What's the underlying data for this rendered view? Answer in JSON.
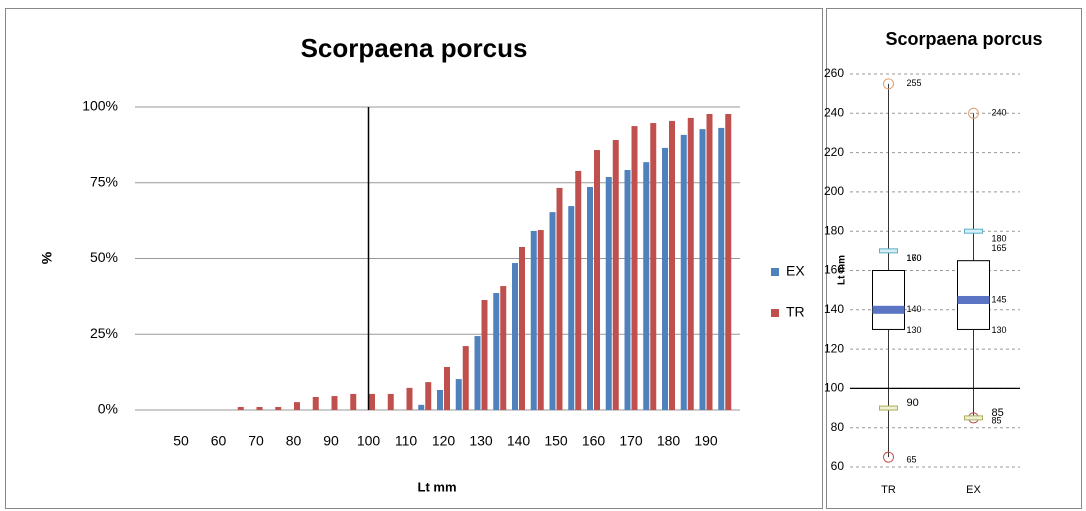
{
  "chart_data": [
    {
      "type": "bar",
      "title": "Scorpaena porcus",
      "x_label": "Lt mm",
      "y_label": "%",
      "categories": [
        50,
        null,
        60,
        null,
        70,
        null,
        80,
        null,
        90,
        null,
        100,
        null,
        110,
        null,
        120,
        null,
        130,
        null,
        140,
        null,
        150,
        null,
        160,
        null,
        170,
        null,
        180,
        null,
        190,
        null
      ],
      "series": [
        {
          "name": "EX",
          "color": "#4f81bd",
          "values": [
            0,
            0,
            0,
            0,
            0,
            0,
            0,
            0,
            0,
            0,
            0,
            0,
            0,
            1.7,
            6.6,
            10.2,
            24.4,
            38.6,
            48.5,
            59.1,
            65.3,
            67.3,
            73.6,
            76.9,
            79.2,
            81.8,
            86.5,
            90.8,
            92.7,
            93.1
          ]
        },
        {
          "name": "TR",
          "color": "#c0504d",
          "values": [
            0,
            0,
            0,
            1,
            1,
            1,
            2.6,
            4.3,
            4.6,
            5.3,
            5.3,
            5.3,
            7.3,
            9.2,
            14.2,
            21.1,
            36.3,
            40.9,
            53.8,
            59.4,
            73.3,
            78.9,
            85.8,
            89.1,
            93.7,
            94.7,
            95.4,
            96.4,
            97.7,
            97.7
          ]
        }
      ],
      "ylim": [
        0,
        100
      ],
      "yticks": [
        {
          "value": 0,
          "label": "0%"
        },
        {
          "value": 25,
          "label": "25%"
        },
        {
          "value": 50,
          "label": "50%"
        },
        {
          "value": 75,
          "label": "75%"
        },
        {
          "value": 100,
          "label": "100%"
        }
      ],
      "grid": true,
      "legend": "right",
      "vline": 100
    },
    {
      "type": "box",
      "title": "Scorpaena porcus",
      "y_label": "Lt mm",
      "categories": [
        "TR",
        "EX"
      ],
      "boxes": [
        {
          "min": 65,
          "q1": 130,
          "median": 140,
          "q3": 160,
          "max": 255,
          "upper": 170,
          "lower": 90
        },
        {
          "min": 85,
          "q1": 130,
          "median": 145,
          "q3": 165,
          "max": 240,
          "upper": 180,
          "lower": 85
        }
      ],
      "ylim": [
        60,
        260
      ],
      "yticks": [
        60,
        80,
        100,
        120,
        140,
        160,
        180,
        200,
        220,
        240,
        260
      ],
      "grid": true,
      "hline": 100
    }
  ]
}
